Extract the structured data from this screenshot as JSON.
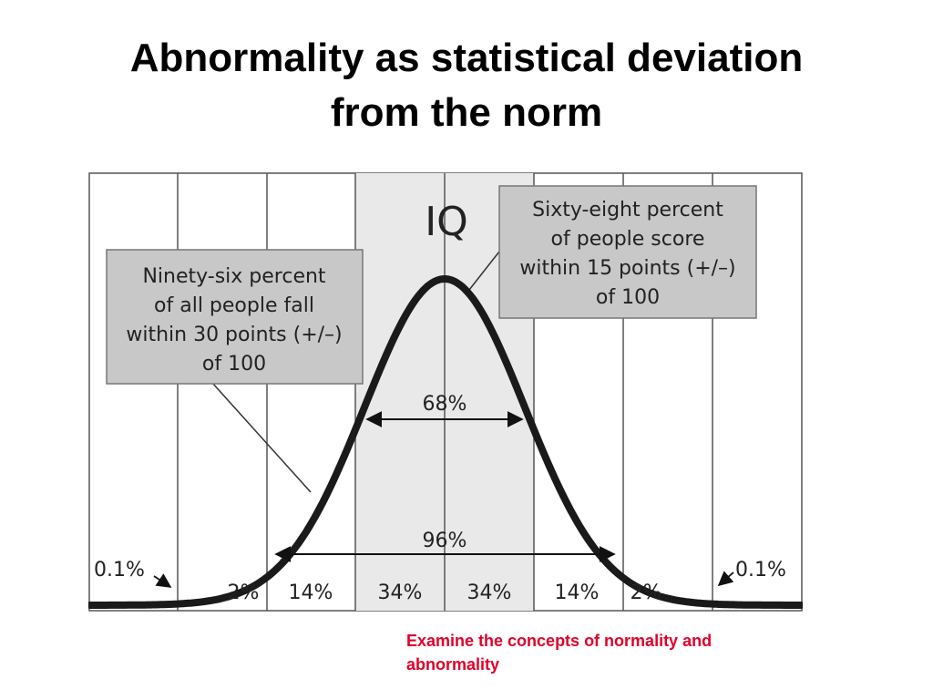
{
  "slide": {
    "title_line1": "Abnormality as statistical deviation",
    "title_line2": "from the norm",
    "caption_line1": "Examine the concepts of normality and",
    "caption_line2": "abnormality"
  },
  "figure": {
    "heading": "IQ",
    "left_box": [
      "Ninety-six percent",
      "of all people fall",
      "within 30 points (+/–)",
      "of 100"
    ],
    "right_box": [
      "Sixty-eight percent",
      "of people score",
      "within 15 points (+/–)",
      "of 100"
    ],
    "range_68_label": "68%",
    "range_96_label": "96%",
    "tail_left_label": "0.1%",
    "tail_right_label": "0.1%",
    "band_percents": [
      "2%",
      "14%",
      "34%",
      "34%",
      "14%",
      "2%"
    ]
  },
  "colors": {
    "caption": "#e0002a",
    "box_fill": "#c8c8c8",
    "center_band": "#e9e9e9",
    "curve": "#1a1a1a",
    "grid": "#444444"
  }
}
